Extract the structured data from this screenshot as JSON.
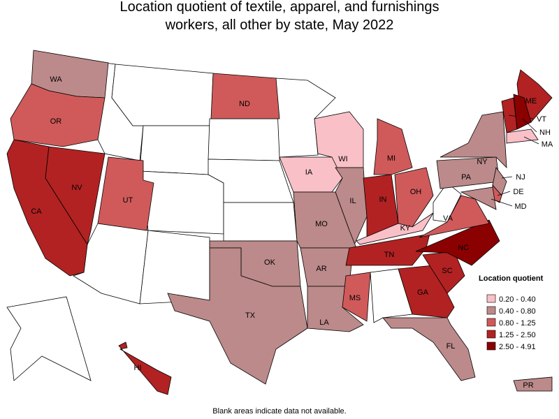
{
  "title": "Location quotient of textile, apparel, and furnishings workers, all other by state, May 2022",
  "legend": {
    "title": "Location quotient",
    "items": [
      {
        "label": "0.20 - 0.40",
        "color": "#f9c0c8"
      },
      {
        "label": "0.40 - 0.80",
        "color": "#bc8a8a"
      },
      {
        "label": "0.80 - 1.25",
        "color": "#d05a5a"
      },
      {
        "label": "1.25 - 2.50",
        "color": "#b22222"
      },
      {
        "label": "2.50 - 4.91",
        "color": "#8b0000"
      }
    ]
  },
  "states": [
    {
      "label": "WA",
      "color": "#bc8a8a"
    },
    {
      "label": "OR",
      "color": "#d05a5a"
    },
    {
      "label": "CA",
      "color": "#b22222"
    },
    {
      "label": "NV",
      "color": "#b22222"
    },
    {
      "label": "UT",
      "color": "#d05a5a"
    },
    {
      "label": "ND",
      "color": "#d05a5a"
    },
    {
      "label": "WI",
      "color": "#f9c0c8"
    },
    {
      "label": "IA",
      "color": "#f9c0c8"
    },
    {
      "label": "IL",
      "color": "#bc8a8a"
    },
    {
      "label": "MO",
      "color": "#bc8a8a"
    },
    {
      "label": "OK",
      "color": "#bc8a8a"
    },
    {
      "label": "TX",
      "color": "#bc8a8a"
    },
    {
      "label": "AR",
      "color": "#bc8a8a"
    },
    {
      "label": "LA",
      "color": "#bc8a8a"
    },
    {
      "label": "MS",
      "color": "#d05a5a"
    },
    {
      "label": "MI",
      "color": "#d05a5a"
    },
    {
      "label": "IN",
      "color": "#b22222"
    },
    {
      "label": "OH",
      "color": "#d05a5a"
    },
    {
      "label": "KY",
      "color": "#f9c0c8"
    },
    {
      "label": "TN",
      "color": "#b22222"
    },
    {
      "label": "GA",
      "color": "#b22222"
    },
    {
      "label": "SC",
      "color": "#b22222"
    },
    {
      "label": "NC",
      "color": "#8b0000"
    },
    {
      "label": "VA",
      "color": "#d05a5a"
    },
    {
      "label": "FL",
      "color": "#bc8a8a"
    },
    {
      "label": "PA",
      "color": "#bc8a8a"
    },
    {
      "label": "NY",
      "color": "#bc8a8a"
    },
    {
      "label": "ME",
      "color": "#b22222"
    },
    {
      "label": "VT",
      "color": "#b22222"
    },
    {
      "label": "NH",
      "color": "#8b0000"
    },
    {
      "label": "MA",
      "color": "#f9c0c8"
    },
    {
      "label": "NJ",
      "color": "#bc8a8a"
    },
    {
      "label": "DE",
      "color": "#d05a5a"
    },
    {
      "label": "MD",
      "color": "#bc8a8a"
    },
    {
      "label": "HI",
      "color": "#b22222"
    },
    {
      "label": "PR",
      "color": "#bc8a8a"
    }
  ],
  "note": "Blank areas indicate data not available."
}
